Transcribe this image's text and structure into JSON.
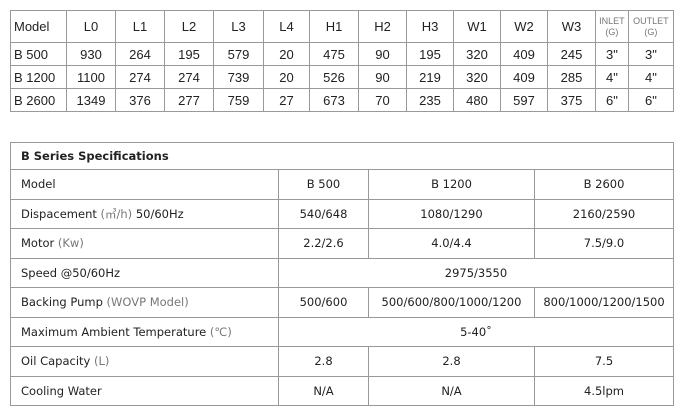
{
  "dimensions": {
    "headers": [
      "Model",
      "L0",
      "L1",
      "L2",
      "L3",
      "L4",
      "H1",
      "H2",
      "H3",
      "W1",
      "W2",
      "W3"
    ],
    "inlet": [
      "INLET",
      "(G)"
    ],
    "outlet": [
      "OUTLET",
      "(G)"
    ],
    "rows": [
      [
        "B 500",
        "930",
        "264",
        "195",
        "579",
        "20",
        "475",
        "90",
        "195",
        "320",
        "409",
        "245",
        "3\"",
        "3\""
      ],
      [
        "B 1200",
        "1100",
        "274",
        "274",
        "739",
        "20",
        "526",
        "90",
        "219",
        "320",
        "409",
        "285",
        "4\"",
        "4\""
      ],
      [
        "B 2600",
        "1349",
        "376",
        "277",
        "759",
        "27",
        "673",
        "70",
        "235",
        "480",
        "597",
        "375",
        "6\"",
        "6\""
      ]
    ]
  },
  "specs": {
    "title": "B Series Specifications",
    "model_label": "Model",
    "models": [
      "B 500",
      "B 1200",
      "B 2600"
    ],
    "disp": {
      "label": "Dispacement",
      "unit": "(㎥/h)",
      "suffix": "50/60Hz",
      "values": [
        "540/648",
        "1080/1290",
        "2160/2590"
      ]
    },
    "motor": {
      "label": "Motor",
      "unit": "(Kw)",
      "values": [
        "2.2/2.6",
        "4.0/4.4",
        "7.5/9.0"
      ]
    },
    "speed": {
      "label": "Speed @50/60Hz",
      "value": "2975/3550"
    },
    "backing": {
      "label": "Backing Pump",
      "unit": "(WOVP Model)",
      "values": [
        "500/600",
        "500/600/800/1000/1200",
        "800/1000/1200/1500"
      ]
    },
    "temp": {
      "label": "Maximum Ambient Temperature",
      "unit": "(℃)",
      "value": "5-40˚"
    },
    "oil": {
      "label": "Oil Capacity",
      "unit": "(L)",
      "values": [
        "2.8",
        "2.8",
        "7.5"
      ]
    },
    "cooling": {
      "label": "Cooling Water",
      "values": [
        "N/A",
        "N/A",
        "4.5lpm"
      ]
    }
  }
}
